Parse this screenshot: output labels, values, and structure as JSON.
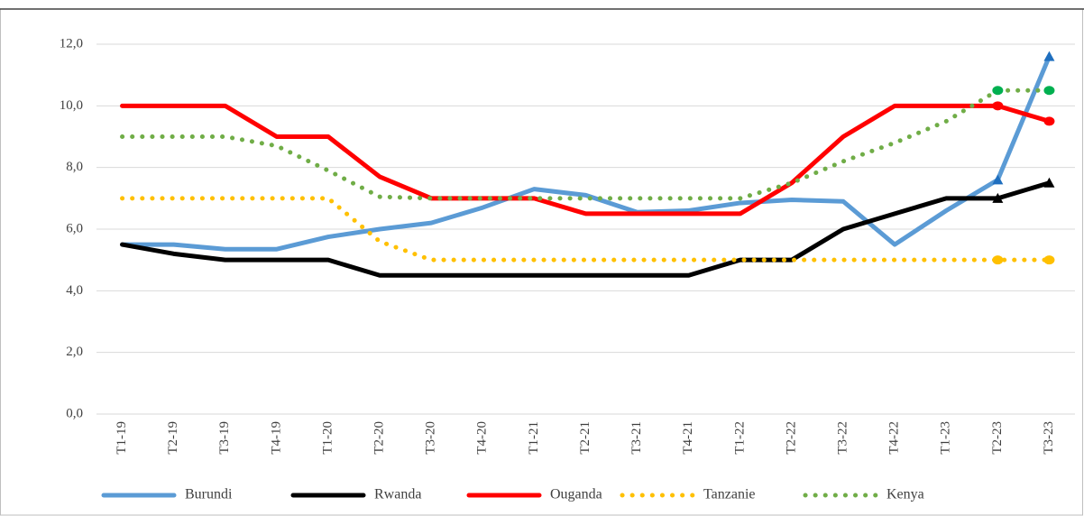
{
  "chart_data": {
    "type": "line",
    "categories": [
      "T1-19",
      "T2-19",
      "T3-19",
      "T4-19",
      "T1-20",
      "T2-20",
      "T3-20",
      "T4-20",
      "T1-21",
      "T2-21",
      "T3-21",
      "T4-21",
      "T1-22",
      "T2-22",
      "T3-22",
      "T4-22",
      "T1-23",
      "T2-23",
      "T3-23"
    ],
    "ylim": [
      0,
      12
    ],
    "yticks": [
      {
        "value": 0,
        "label": "0,0"
      },
      {
        "value": 2,
        "label": "2,0"
      },
      {
        "value": 4,
        "label": "4,0"
      },
      {
        "value": 6,
        "label": "6,0"
      },
      {
        "value": 8,
        "label": "8,0"
      },
      {
        "value": 10,
        "label": "10,0"
      },
      {
        "value": 12,
        "label": "12,0"
      }
    ],
    "grid": true,
    "legend": "bottom",
    "series": [
      {
        "name": "Burundi",
        "color": "#5b9bd5",
        "style": "solid",
        "marker": "triangle",
        "values": [
          5.5,
          5.5,
          5.35,
          5.35,
          5.75,
          6.0,
          6.2,
          6.7,
          7.3,
          7.1,
          6.55,
          6.6,
          6.85,
          6.95,
          6.9,
          5.5,
          6.6,
          7.6,
          11.6
        ]
      },
      {
        "name": "Rwanda",
        "color": "#000000",
        "style": "solid",
        "marker": "triangle",
        "values": [
          5.5,
          5.2,
          5.0,
          5.0,
          5.0,
          4.5,
          4.5,
          4.5,
          4.5,
          4.5,
          4.5,
          4.5,
          5.0,
          5.0,
          6.0,
          6.5,
          7.0,
          7.0,
          7.5
        ]
      },
      {
        "name": "Ouganda",
        "color": "#ff0000",
        "style": "solid",
        "marker": "circle",
        "values": [
          10,
          10,
          10,
          9,
          9,
          7.7,
          7,
          7,
          7,
          6.5,
          6.5,
          6.5,
          6.5,
          7.5,
          9,
          10,
          10,
          10,
          9.5
        ]
      },
      {
        "name": "Tanzanie",
        "color": "#ffc000",
        "style": "dotted",
        "marker": "circle",
        "values": [
          7,
          7,
          7,
          7,
          7,
          5.6,
          5,
          5,
          5,
          5,
          5,
          5,
          5,
          5,
          5,
          5,
          5,
          5,
          5
        ]
      },
      {
        "name": "Kenya",
        "color": "#70ad47",
        "style": "dotted",
        "marker": "circle",
        "values": [
          9,
          9,
          9,
          8.7,
          7.9,
          7.05,
          7,
          7,
          7,
          7,
          7,
          7,
          7,
          7.5,
          8.2,
          8.8,
          9.5,
          10.5,
          10.5
        ]
      }
    ]
  }
}
